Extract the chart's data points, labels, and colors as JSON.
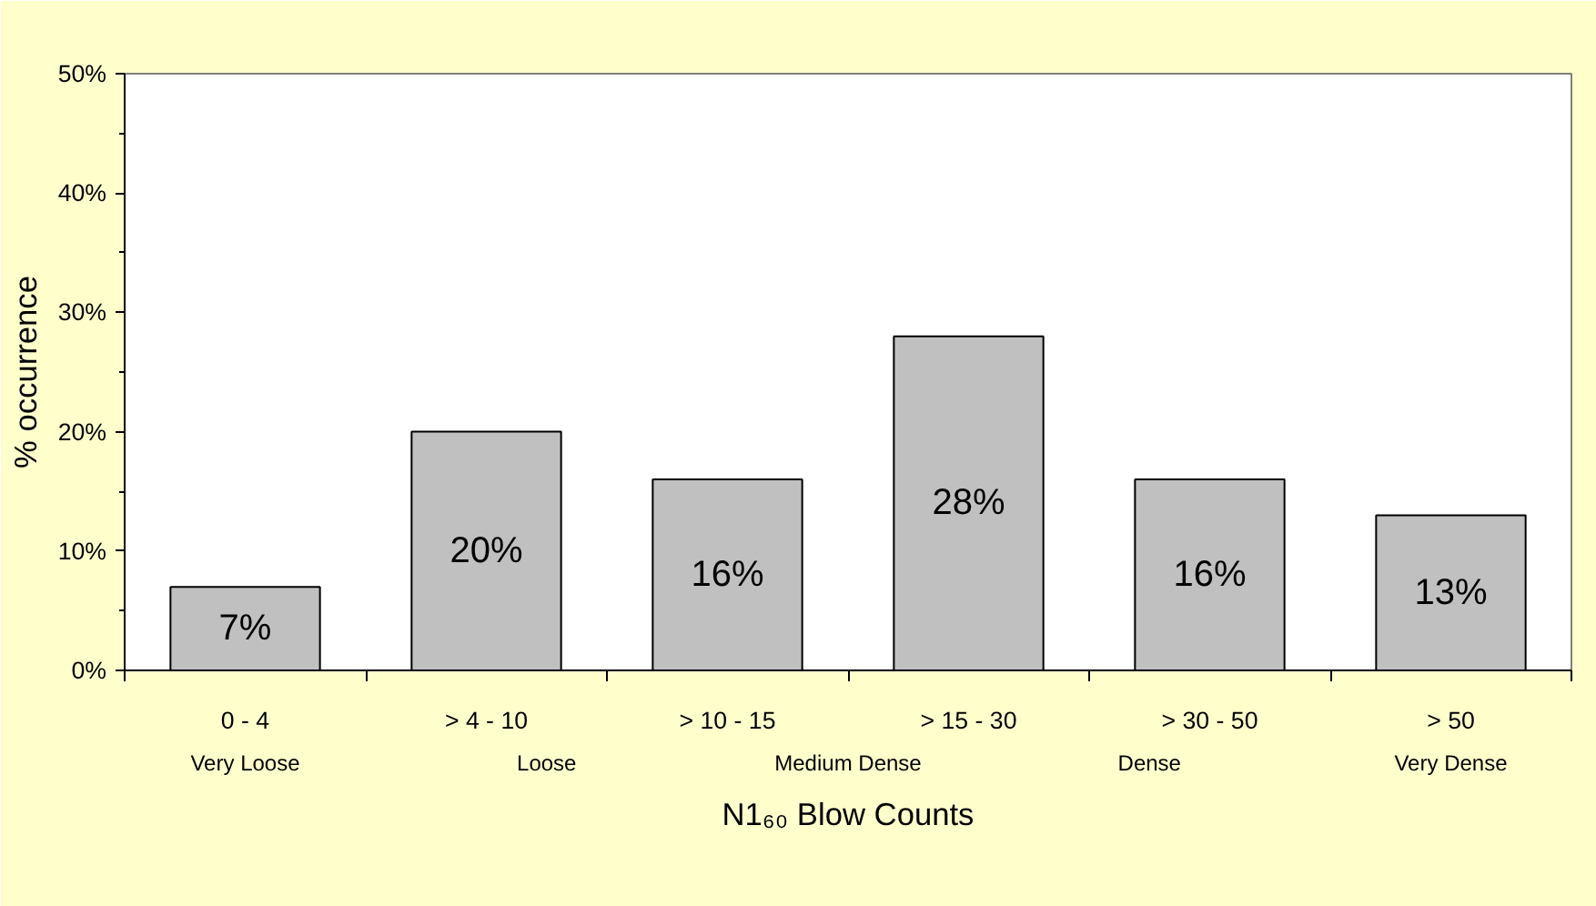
{
  "chart_data": {
    "type": "bar",
    "categories": [
      "0 - 4",
      "> 4 - 10",
      "> 10 - 15",
      "> 15 - 30",
      "> 30 - 50",
      "> 50"
    ],
    "values": [
      7,
      20,
      16,
      28,
      16,
      13
    ],
    "value_labels": [
      "7%",
      "20%",
      "16%",
      "28%",
      "16%",
      "13%"
    ],
    "color": "#c0c0c0",
    "xlabel": "N1₆₀ Blow Counts",
    "ylabel": "% occurrence",
    "ylim": [
      0,
      50
    ],
    "yticks": [
      {
        "value": 0,
        "label": "0%"
      },
      {
        "value": 5,
        "label": null
      },
      {
        "value": 10,
        "label": "10%"
      },
      {
        "value": 15,
        "label": null
      },
      {
        "value": 20,
        "label": "20%"
      },
      {
        "value": 25,
        "label": null
      },
      {
        "value": 30,
        "label": "30%"
      },
      {
        "value": 35,
        "label": null
      },
      {
        "value": 40,
        "label": "40%"
      },
      {
        "value": 45,
        "label": null
      },
      {
        "value": 50,
        "label": "50%"
      }
    ],
    "annotations": [
      "Very Loose",
      "Loose",
      "Medium Dense",
      "Dense",
      "Very Dense"
    ]
  }
}
